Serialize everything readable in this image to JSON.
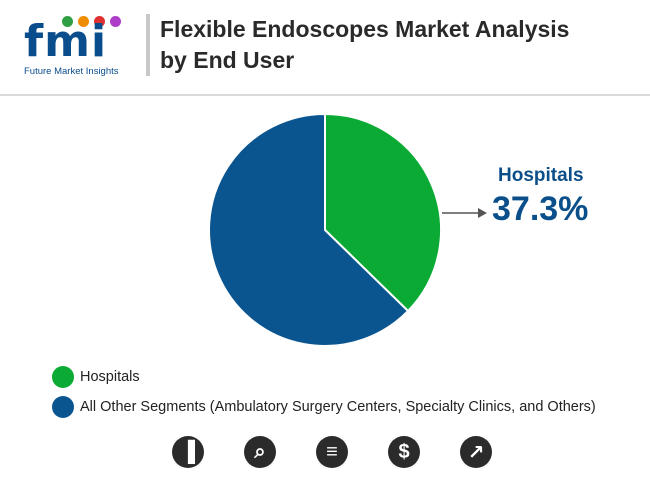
{
  "header": {
    "logo_text": "fmi",
    "logo_subtext": "Future Market Insights",
    "title_line1": "Flexible Endoscopes Market Analysis",
    "title_line2": "by End User"
  },
  "colors": {
    "hospitals": "#0aaa34",
    "others": "#0a5590",
    "callout": "#0b4f8a",
    "logo": "#0a4d8c"
  },
  "callout": {
    "label": "Hospitals",
    "value": "37.3%"
  },
  "chart_data": {
    "type": "pie",
    "slices": [
      {
        "label": "Hospitals",
        "value": 37.3,
        "color": "#0aaa34"
      },
      {
        "label": "All Other Segments (Ambulatory Surgery Centers, Specialty Clinics, and Others)",
        "value": 62.7,
        "color": "#0a5590"
      }
    ],
    "title": "Flexible Endoscopes Market Analysis by End User",
    "legend_position": "bottom-left"
  },
  "legend": [
    {
      "label": "Hospitals",
      "color": "#0aaa34"
    },
    {
      "label": "All Other Segments (Ambulatory Surgery Centers, Specialty Clinics, and Others)",
      "color": "#0a5590"
    }
  ],
  "footer_icons": [
    {
      "icon": "bar-chart-icon",
      "glyph": "▐"
    },
    {
      "icon": "magnifier-trend-icon",
      "glyph": "⌕"
    },
    {
      "icon": "document-icon",
      "glyph": "≡"
    },
    {
      "icon": "dollar-icon",
      "glyph": "$"
    },
    {
      "icon": "line-chart-icon",
      "glyph": "↗"
    }
  ]
}
